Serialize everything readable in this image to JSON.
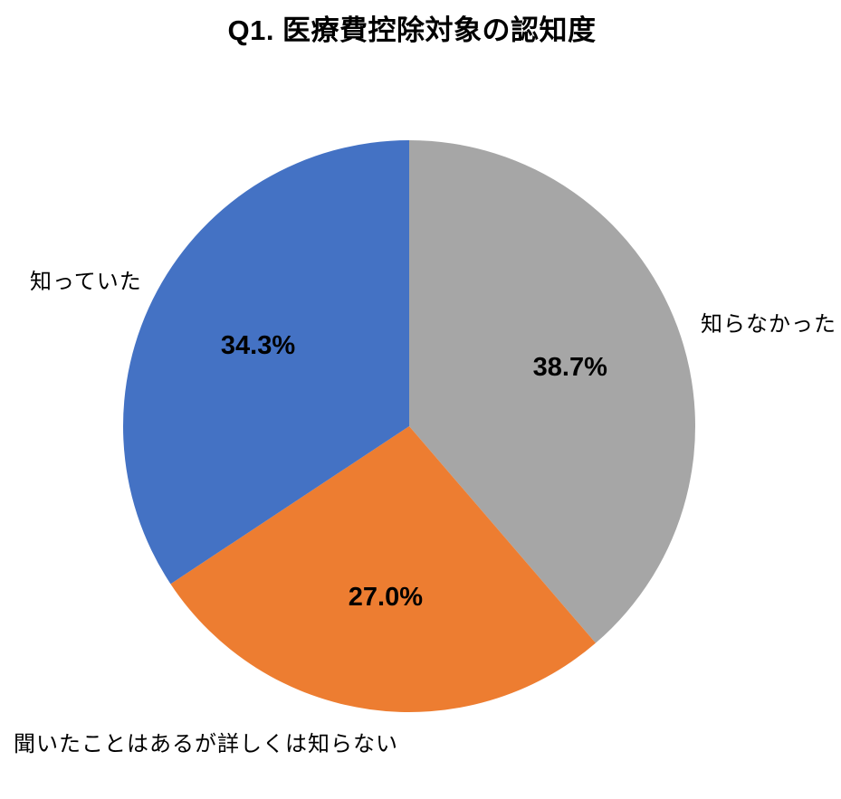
{
  "chart_data": {
    "type": "pie",
    "title": "Q1. 医療費控除対象の認知度",
    "start_angle_deg": 0,
    "direction": "clockwise",
    "legend": "none",
    "background": "#FFFFFF",
    "data_label_color": "#000000",
    "slices": [
      {
        "label": "知らなかった",
        "value": 38.7,
        "pct_text": "38.7%",
        "color": "#A6A6A6"
      },
      {
        "label": "聞いたことはあるが詳しくは知らない",
        "value": 27.0,
        "pct_text": "27.0%",
        "color": "#ED7D31"
      },
      {
        "label": "知っていた",
        "value": 34.3,
        "pct_text": "34.3%",
        "color": "#4472C4"
      }
    ]
  }
}
